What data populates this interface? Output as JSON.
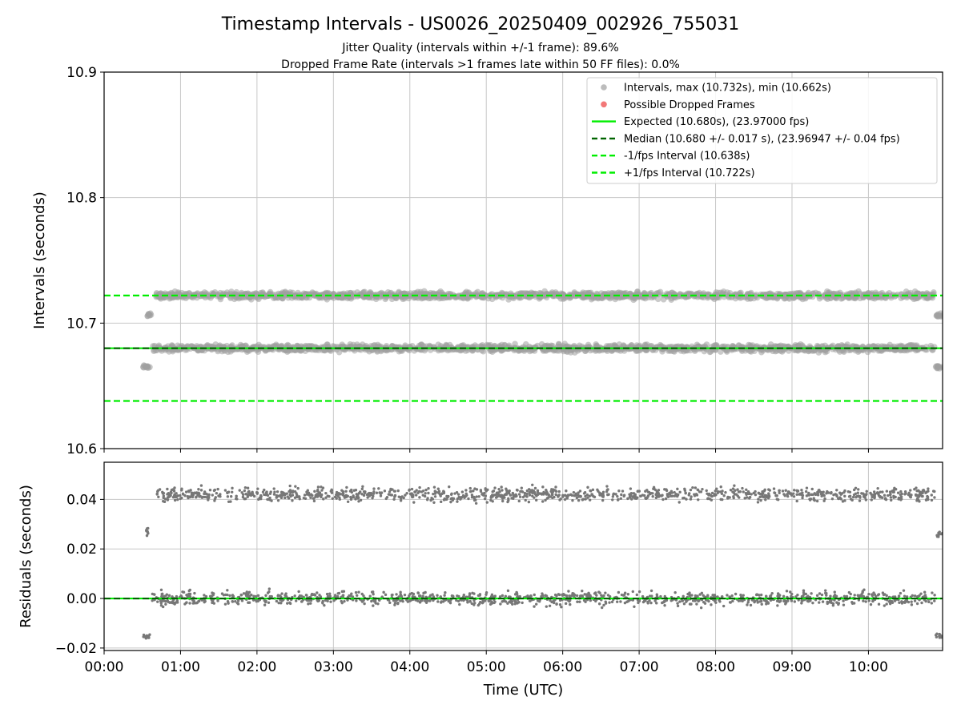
{
  "chart_data": [
    {
      "panel": "intervals",
      "type": "scatter",
      "title": "Timestamp Intervals - US0026_20250409_002926_755031",
      "subtitles": [
        "Jitter Quality (intervals within +/-1 frame): 89.6%",
        "Dropped Frame Rate (intervals >1 frames late within 50 FF files): 0.0%"
      ],
      "xlabel": "",
      "ylabel": "Intervals (seconds)",
      "xlim_hours": [
        0,
        10.97
      ],
      "ylim": [
        10.6,
        10.9
      ],
      "yticks": [
        10.6,
        10.7,
        10.8,
        10.9
      ],
      "ytick_labels": [
        "10.6",
        "10.7",
        "10.8",
        "10.9"
      ],
      "grid": true,
      "legend_position": "upper-right",
      "legend": [
        {
          "label": "Intervals, max (10.732s), min (10.662s)",
          "marker": "circle",
          "color": "#a0a0a0"
        },
        {
          "label": "Possible Dropped Frames",
          "marker": "circle",
          "color": "#f06060"
        },
        {
          "label": "Expected (10.680s), (23.97000 fps)",
          "line": "solid",
          "color": "#00ee00"
        },
        {
          "label": "Median (10.680 +/- 0.017 s), (23.96947 +/- 0.04 fps)",
          "line": "dashed",
          "color": "#006400"
        },
        {
          "label": "-1/fps Interval (10.638s)",
          "line": "dashed",
          "color": "#00ee00"
        },
        {
          "label": "+1/fps Interval (10.722s)",
          "line": "dashed",
          "color": "#00ee00"
        }
      ],
      "reference_lines": [
        {
          "name": "Expected",
          "y": 10.68,
          "style": "solid",
          "color": "#00ee00"
        },
        {
          "name": "Median",
          "y": 10.68,
          "style": "dashed",
          "color": "#006400"
        },
        {
          "name": "-1/fps Interval",
          "y": 10.638,
          "style": "dashed",
          "color": "#00ee00"
        },
        {
          "name": "+1/fps Interval",
          "y": 10.722,
          "style": "dashed",
          "color": "#00ee00"
        }
      ],
      "series": [
        {
          "name": "Intervals",
          "color": "#a0a0a0",
          "segments": [
            {
              "x_start_hours": 0.5,
              "x_end_hours": 0.6,
              "y_center": 10.665,
              "y_spread": 0.002
            },
            {
              "x_start_hours": 0.55,
              "x_end_hours": 0.62,
              "y_center": 10.707,
              "y_spread": 0.003
            },
            {
              "x_start_hours": 0.63,
              "x_end_hours": 10.87,
              "y_center": 10.68,
              "y_spread": 0.004
            },
            {
              "x_start_hours": 0.68,
              "x_end_hours": 10.87,
              "y_center": 10.722,
              "y_spread": 0.004
            },
            {
              "x_start_hours": 10.88,
              "x_end_hours": 10.97,
              "y_center": 10.665,
              "y_spread": 0.002
            },
            {
              "x_start_hours": 10.88,
              "x_end_hours": 10.97,
              "y_center": 10.706,
              "y_spread": 0.002
            }
          ]
        },
        {
          "name": "Possible Dropped Frames",
          "color": "#f06060",
          "segments": []
        }
      ]
    },
    {
      "panel": "residuals",
      "type": "scatter",
      "xlabel": "Time (UTC)",
      "ylabel": "Residuals (seconds)",
      "xlim_hours": [
        0,
        10.97
      ],
      "ylim": [
        -0.021,
        0.055
      ],
      "xticks_hours": [
        0,
        1,
        2,
        3,
        4,
        5,
        6,
        7,
        8,
        9,
        10
      ],
      "xtick_labels": [
        "00:00",
        "01:00",
        "02:00",
        "03:00",
        "04:00",
        "05:00",
        "06:00",
        "07:00",
        "08:00",
        "09:00",
        "10:00"
      ],
      "yticks": [
        -0.02,
        0.0,
        0.02,
        0.04
      ],
      "ytick_labels": [
        "−0.02",
        "0.00",
        "0.02",
        "0.04"
      ],
      "grid": true,
      "reference_lines": [
        {
          "name": "Zero",
          "y": 0.0,
          "style": "solid",
          "color": "#00ee00"
        },
        {
          "name": "Median",
          "y": 0.0,
          "style": "dashed",
          "color": "#006400"
        }
      ],
      "series": [
        {
          "name": "Residuals",
          "color": "#777777",
          "segments": [
            {
              "x_start_hours": 0.5,
              "x_end_hours": 0.6,
              "y_center": -0.0155,
              "y_spread": 0.0015
            },
            {
              "x_start_hours": 0.55,
              "x_end_hours": 0.6,
              "y_center": 0.027,
              "y_spread": 0.003
            },
            {
              "x_start_hours": 0.63,
              "x_end_hours": 10.87,
              "y_center": 0.0,
              "y_spread": 0.004
            },
            {
              "x_start_hours": 0.68,
              "x_end_hours": 10.87,
              "y_center": 0.042,
              "y_spread": 0.004
            },
            {
              "x_start_hours": 10.88,
              "x_end_hours": 10.97,
              "y_center": -0.015,
              "y_spread": 0.0015
            },
            {
              "x_start_hours": 10.88,
              "x_end_hours": 10.97,
              "y_center": 0.026,
              "y_spread": 0.0015
            }
          ]
        }
      ]
    }
  ]
}
